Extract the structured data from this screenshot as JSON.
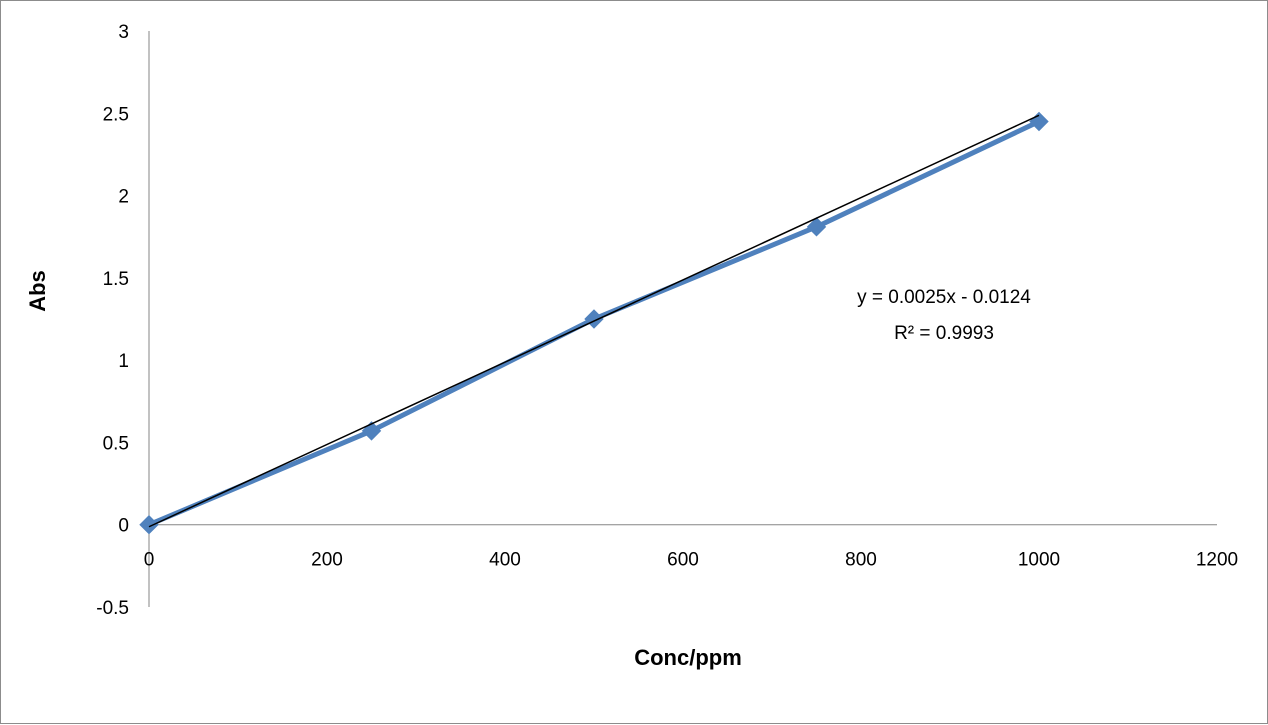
{
  "chart_data": {
    "type": "scatter",
    "title": "",
    "xlabel": "Conc/ppm",
    "ylabel": "Abs",
    "xlim": [
      0,
      1200
    ],
    "ylim": [
      -0.5,
      3
    ],
    "x_ticks": [
      "0",
      "200",
      "400",
      "600",
      "800",
      "1000",
      "1200"
    ],
    "y_ticks": [
      "-0.5",
      "0",
      "0.5",
      "1",
      "1.5",
      "2",
      "2.5",
      "3"
    ],
    "grid": false,
    "legend": "none",
    "series": [
      {
        "x": [
          0,
          250,
          500,
          750,
          1000
        ],
        "y": [
          0,
          0.57,
          1.25,
          1.81,
          2.45
        ],
        "color": "#4f81bd",
        "marker": "diamond",
        "connected": true
      }
    ],
    "trendline": {
      "type": "linear",
      "slope": 0.0025,
      "intercept": -0.0124,
      "x_range": [
        0,
        1000
      ],
      "color": "#000000",
      "equation": "y = 0.0025x - 0.0124",
      "r_squared": "R² = 0.9993"
    }
  }
}
